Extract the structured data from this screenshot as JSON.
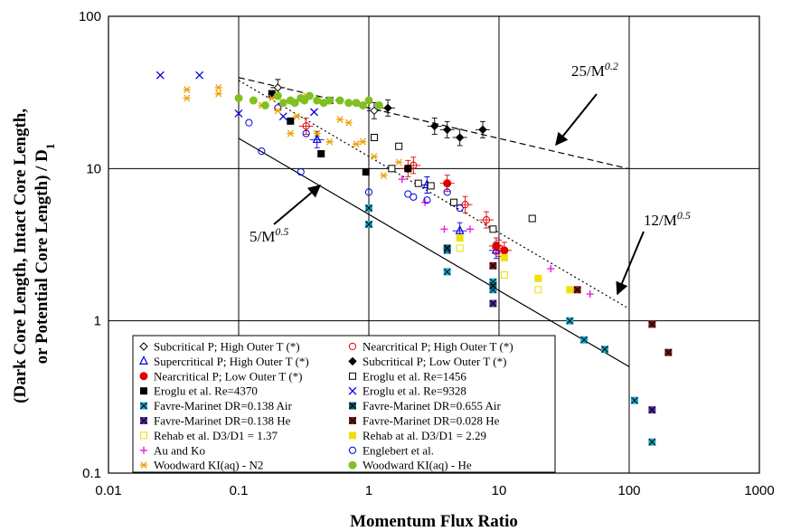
{
  "chart_data": {
    "type": "scatter",
    "x_scale": "log",
    "y_scale": "log",
    "xlim": [
      0.01,
      1000
    ],
    "ylim": [
      0.1,
      100
    ],
    "xlabel": "Momentum Flux Ratio",
    "ylabel_lines": [
      "(Dark Core Length, Intact Core Length,",
      "or Potential Core Length) / D",
      "1"
    ],
    "x_ticks": [
      "0.01",
      "0.1",
      "1",
      "10",
      "100",
      "1000"
    ],
    "y_ticks": [
      "0.1",
      "1",
      "10",
      "100"
    ],
    "grid": true,
    "legend_position": "bottom-left",
    "annotations": [
      {
        "text_main": "25/M",
        "text_exp": "0.2"
      },
      {
        "text_main": "12/M",
        "text_exp": "0.5"
      },
      {
        "text_main": "5/M",
        "text_exp": "0.5"
      }
    ],
    "lines": [
      {
        "label": "25/M^0.2",
        "coef": 25,
        "exp": 0.2,
        "x_range": [
          0.1,
          100
        ],
        "style": "dashed"
      },
      {
        "label": "12/M^0.5",
        "coef": 12,
        "exp": 0.5,
        "x_range": [
          0.1,
          100
        ],
        "style": "dotted"
      },
      {
        "label": "5/M^0.5",
        "coef": 5,
        "exp": 0.5,
        "x_range": [
          0.1,
          100
        ],
        "style": "solid"
      }
    ],
    "series": [
      {
        "name": "Subcritical P; High Outer T (*)",
        "marker": "diamond-open",
        "color": "#000000",
        "points": [
          [
            0.2,
            34
          ],
          [
            1.1,
            24
          ]
        ]
      },
      {
        "name": "Nearcritical P; High Outer T (*)",
        "marker": "circle-open",
        "color": "#e00000",
        "points": [
          [
            0.33,
            19
          ],
          [
            2.2,
            10.5
          ],
          [
            5.5,
            5.8
          ],
          [
            8,
            4.6
          ],
          [
            10,
            3
          ]
        ]
      },
      {
        "name": "Supercritical P; High Outer T (*)",
        "marker": "triangle-open",
        "color": "#0000e0",
        "points": [
          [
            0.4,
            15.5
          ],
          [
            2.8,
            7.8
          ],
          [
            5,
            3.9
          ],
          [
            9.5,
            2.9
          ]
        ]
      },
      {
        "name": "Subcritical P; Low Outer T (*)",
        "marker": "diamond",
        "color": "#000000",
        "points": [
          [
            1.4,
            25
          ],
          [
            3.2,
            19
          ],
          [
            4,
            18
          ],
          [
            5,
            16
          ],
          [
            7.5,
            18
          ]
        ]
      },
      {
        "name": "Nearcritical P; Low Outer T (*)",
        "marker": "circle",
        "color": "#e00000",
        "points": [
          [
            4,
            8
          ],
          [
            9.5,
            3.1
          ],
          [
            11,
            2.9
          ],
          [
            2,
            10
          ]
        ]
      },
      {
        "name": "Eroglu et al. Re=1456",
        "marker": "square-open",
        "color": "#000000",
        "points": [
          [
            0.5,
            28
          ],
          [
            1.1,
            16
          ],
          [
            1.5,
            10
          ],
          [
            1.7,
            14
          ],
          [
            2.4,
            8
          ],
          [
            3,
            7.7
          ],
          [
            4.5,
            6
          ],
          [
            9,
            4
          ],
          [
            18,
            4.7
          ]
        ]
      },
      {
        "name": "Eroglu et al. Re=4370",
        "marker": "square",
        "color": "#000000",
        "points": [
          [
            0.18,
            31
          ],
          [
            0.25,
            20.5
          ],
          [
            0.43,
            12.5
          ],
          [
            0.95,
            9.5
          ],
          [
            2,
            10
          ]
        ]
      },
      {
        "name": "Eroglu et al. Re=9328",
        "marker": "x",
        "color": "#0000e0",
        "points": [
          [
            0.025,
            41
          ],
          [
            0.05,
            41
          ],
          [
            0.1,
            23
          ],
          [
            0.22,
            22
          ],
          [
            0.38,
            23.5
          ]
        ]
      },
      {
        "name": "Favre-Marinet DR=0.138 Air",
        "marker": "square-x",
        "color": "#1fa9c9",
        "points": [
          [
            1,
            5.5
          ],
          [
            1,
            4.3
          ],
          [
            4,
            2.9
          ],
          [
            4,
            2.1
          ],
          [
            9,
            1.8
          ],
          [
            9,
            1.6
          ],
          [
            35,
            1
          ],
          [
            45,
            0.75
          ],
          [
            65,
            0.65
          ],
          [
            110,
            0.3
          ],
          [
            150,
            0.16
          ]
        ]
      },
      {
        "name": "Favre-Marinet DR=0.655 Air",
        "marker": "square-x-dark",
        "color": "#0f5a70",
        "points": [
          [
            4,
            3
          ],
          [
            9,
            1.7
          ]
        ]
      },
      {
        "name": "Favre-Marinet DR=0.138 He",
        "marker": "square-x",
        "color": "#5a2ca0",
        "points": [
          [
            9,
            1.3
          ],
          [
            150,
            0.26
          ]
        ]
      },
      {
        "name": "Favre-Marinet DR=0.028 He",
        "marker": "square-x",
        "color": "#7a1a1a",
        "points": [
          [
            9,
            2.3
          ],
          [
            40,
            1.6
          ],
          [
            150,
            0.95
          ],
          [
            200,
            0.62
          ]
        ]
      },
      {
        "name": "Rehab et al. D3/D1 = 1.37",
        "marker": "square-open",
        "color": "#e8e000",
        "points": [
          [
            5,
            3
          ],
          [
            11,
            2
          ],
          [
            20,
            1.6
          ]
        ]
      },
      {
        "name": "Rehab at al. D3/D1 = 2.29",
        "marker": "square",
        "color": "#f0e000",
        "points": [
          [
            5,
            3.5
          ],
          [
            11,
            2.6
          ],
          [
            20,
            1.9
          ],
          [
            35,
            1.6
          ]
        ]
      },
      {
        "name": "Au and Ko",
        "marker": "plus",
        "color": "#e020e0",
        "points": [
          [
            1.8,
            8.5
          ],
          [
            2.7,
            6
          ],
          [
            3.8,
            4
          ],
          [
            6,
            4
          ],
          [
            25,
            2.2
          ],
          [
            50,
            1.5
          ]
        ]
      },
      {
        "name": "Englebert et al.",
        "marker": "circle-open",
        "color": "#0000e0",
        "points": [
          [
            0.12,
            20
          ],
          [
            0.15,
            13
          ],
          [
            0.2,
            25
          ],
          [
            0.3,
            9.5
          ],
          [
            0.33,
            17
          ],
          [
            1,
            7
          ],
          [
            2,
            6.8
          ],
          [
            2.2,
            6.5
          ],
          [
            2.8,
            6.2
          ],
          [
            4,
            7
          ],
          [
            5,
            5.5
          ]
        ]
      },
      {
        "name": "Woodward KI(aq) - N2",
        "marker": "asterisk",
        "color": "#f0a000",
        "points": [
          [
            0.04,
            33
          ],
          [
            0.04,
            29
          ],
          [
            0.07,
            34
          ],
          [
            0.07,
            31
          ],
          [
            0.15,
            26
          ],
          [
            0.18,
            29
          ],
          [
            0.2,
            24
          ],
          [
            0.22,
            27
          ],
          [
            0.25,
            17
          ],
          [
            0.28,
            22
          ],
          [
            0.33,
            30
          ],
          [
            0.4,
            17
          ],
          [
            0.5,
            15
          ],
          [
            0.6,
            21
          ],
          [
            0.7,
            20
          ],
          [
            0.8,
            14.5
          ],
          [
            0.9,
            15
          ],
          [
            1.1,
            12
          ],
          [
            1.3,
            9
          ],
          [
            1.7,
            11
          ]
        ]
      },
      {
        "name": "Woodward KI(aq) - He",
        "marker": "circle",
        "color": "#80c020",
        "points": [
          [
            0.1,
            29
          ],
          [
            0.13,
            28
          ],
          [
            0.16,
            26
          ],
          [
            0.2,
            30
          ],
          [
            0.22,
            27
          ],
          [
            0.25,
            28
          ],
          [
            0.27,
            27
          ],
          [
            0.3,
            29
          ],
          [
            0.32,
            28
          ],
          [
            0.35,
            30
          ],
          [
            0.4,
            28
          ],
          [
            0.45,
            27
          ],
          [
            0.5,
            28
          ],
          [
            0.6,
            28
          ],
          [
            0.7,
            27
          ],
          [
            0.8,
            27
          ],
          [
            0.9,
            26
          ],
          [
            1,
            28
          ],
          [
            1.2,
            26
          ]
        ]
      }
    ]
  }
}
